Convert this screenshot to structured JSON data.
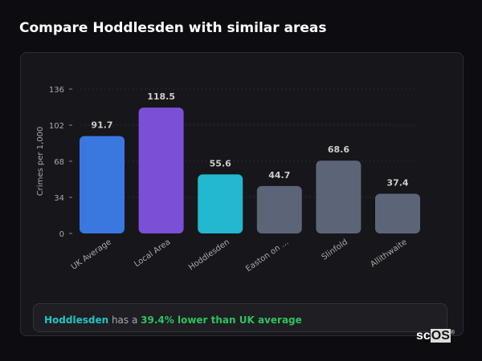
{
  "title": "Compare Hoddlesden with similar areas",
  "chart_data": {
    "type": "bar",
    "ylabel": "Crimes per 1,000",
    "ylim": [
      0,
      136
    ],
    "yticks": [
      0,
      34,
      68,
      102,
      136
    ],
    "categories": [
      "UK Average",
      "Local Area",
      "Hoddlesden",
      "Easton on ...",
      "Slinfold",
      "Allithwaite"
    ],
    "values": [
      91.7,
      118.5,
      55.6,
      44.7,
      68.6,
      37.4
    ],
    "colors": [
      "#3a78e0",
      "#7b4fd6",
      "#22b8cf",
      "#5b6577",
      "#5b6577",
      "#5b6577"
    ],
    "grid": true
  },
  "summary": {
    "area": "Hoddlesden",
    "middle": " has a ",
    "value": "39.4% lower than UK average"
  },
  "logo": "scOS"
}
